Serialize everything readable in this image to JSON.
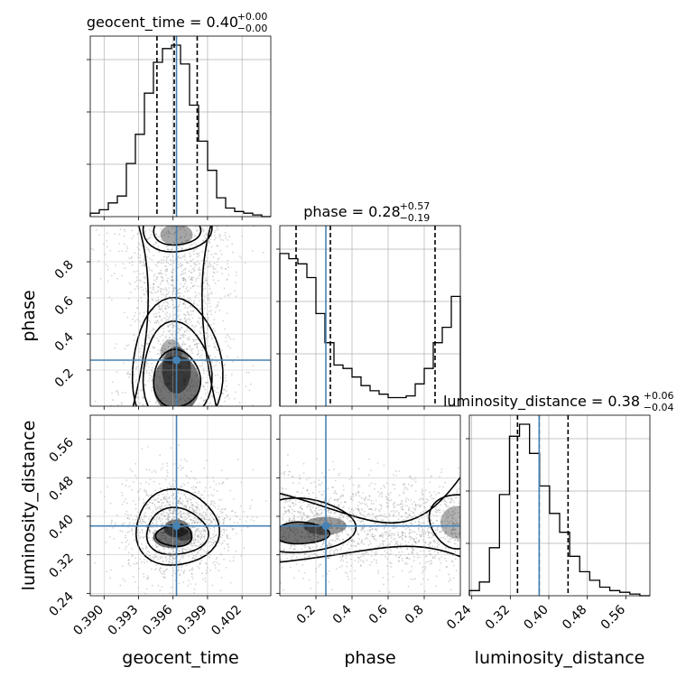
{
  "chart_data": {
    "type": "corner",
    "colors": {
      "truth": "#4682b4",
      "hist": "#000000",
      "quantile": "#000000",
      "grid": "#b0b0b0"
    },
    "parameters": [
      {
        "name": "geocent_time",
        "label": "geocent_time",
        "title_main": "geocent_time = 0.40",
        "title_plus": "+0.00",
        "title_minus": "−0.00",
        "range": [
          0.3888,
          0.4045
        ],
        "ticks": [
          0.39,
          0.393,
          0.396,
          0.399,
          0.402
        ],
        "tick_labels": [
          "0.390",
          "0.393",
          "0.396",
          "0.399",
          "0.402"
        ],
        "truth": 0.3963,
        "quantiles": [
          0.3946,
          0.3961,
          0.3981
        ],
        "hist_max": 10,
        "hist": [
          0.2,
          0.4,
          0.8,
          1.2,
          3.1,
          4.8,
          7.2,
          9.0,
          9.8,
          10.0,
          8.9,
          6.5,
          4.4,
          2.7,
          1.1,
          0.5,
          0.3,
          0.2,
          0.1,
          0.0
        ]
      },
      {
        "name": "phase",
        "label": "phase",
        "title_main": "phase = 0.28",
        "title_plus": "+0.57",
        "title_minus": "−0.19",
        "range": [
          0.0,
          1.0
        ],
        "ticks": [
          0.2,
          0.4,
          0.6,
          0.8
        ],
        "tick_labels": [
          "0.2",
          "0.4",
          "0.6",
          "0.8"
        ],
        "truth": 0.255,
        "quantiles": [
          0.09,
          0.28,
          0.86
        ],
        "hist_max": 10,
        "hist": [
          8.9,
          8.6,
          8.3,
          7.5,
          5.4,
          3.7,
          2.4,
          2.2,
          1.7,
          1.2,
          0.9,
          0.7,
          0.5,
          0.5,
          0.6,
          1.3,
          2.2,
          3.7,
          4.6,
          6.4
        ]
      },
      {
        "name": "luminosity_distance",
        "label": "luminosity_distance",
        "title_main": "luminosity_distance = 0.38",
        "title_plus": "+0.06",
        "title_minus": "−0.04",
        "range": [
          0.235,
          0.61
        ],
        "ticks": [
          0.24,
          0.32,
          0.4,
          0.48,
          0.56
        ],
        "tick_labels": [
          "0.24",
          "0.32",
          "0.40",
          "0.48",
          "0.56"
        ],
        "truth": 0.38,
        "quantiles": [
          0.335,
          0.38,
          0.44
        ],
        "hist_max": 10,
        "hist": [
          0.3,
          0.8,
          2.8,
          5.9,
          9.3,
          10.0,
          8.3,
          6.4,
          4.8,
          3.7,
          2.3,
          1.4,
          0.9,
          0.5,
          0.3,
          0.2,
          0.1,
          0.0
        ]
      }
    ],
    "pairs": [
      {
        "x": "geocent_time",
        "y": "phase",
        "type": "density-contour",
        "truth": [
          0.3963,
          0.255
        ]
      },
      {
        "x": "geocent_time",
        "y": "luminosity_distance",
        "type": "density-contour",
        "truth": [
          0.3963,
          0.38
        ]
      },
      {
        "x": "phase",
        "y": "luminosity_distance",
        "type": "density-contour",
        "truth": [
          0.255,
          0.38
        ]
      }
    ]
  }
}
